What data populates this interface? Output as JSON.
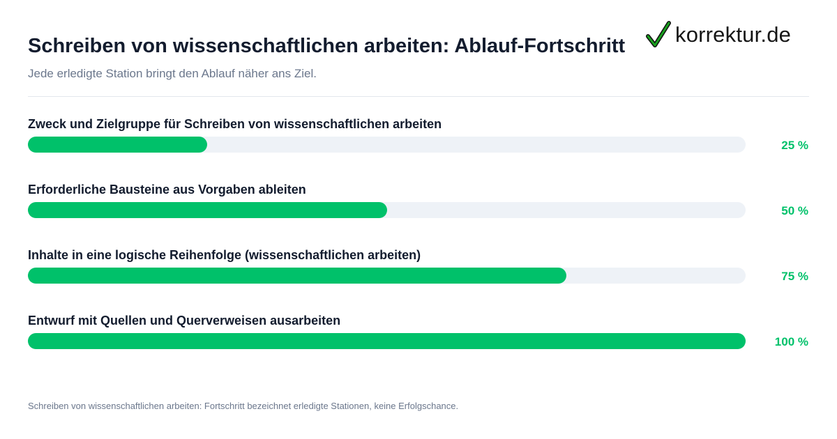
{
  "header": {
    "title": "Schreiben von wissenschaftlichen arbeiten: Ablauf-Fortschritt",
    "subtitle": "Jede erledigte Station bringt den Ablauf näher ans Ziel."
  },
  "logo": {
    "text": "korrektur.de",
    "icon": "checkmark-icon",
    "check_color": "#19a01e"
  },
  "colors": {
    "accent": "#00c16a",
    "track": "#eef2f7",
    "text": "#131c2e",
    "muted": "#6b778c"
  },
  "chart_data": {
    "type": "bar",
    "orientation": "horizontal",
    "title": "Schreiben von wissenschaftlichen arbeiten: Ablauf-Fortschritt",
    "subtitle": "Jede erledigte Station bringt den Ablauf näher ans Ziel.",
    "categories": [
      "Zweck und Zielgruppe für Schreiben von wissenschaftlichen arbeiten",
      "Erforderliche Bausteine aus Vorgaben ableiten",
      "Inhalte in eine logische Reihenfolge (wissenschaftlichen arbeiten)",
      "Entwurf mit Quellen und Querverweisen ausarbeiten"
    ],
    "values": [
      25,
      50,
      75,
      100
    ],
    "value_labels": [
      "25 %",
      "50 %",
      "75 %",
      "100 %"
    ],
    "xlim": [
      0,
      100
    ],
    "grid": false
  },
  "footnote": "Schreiben von wissenschaftlichen arbeiten: Fortschritt bezeichnet erledigte Stationen, keine Erfolgschance."
}
